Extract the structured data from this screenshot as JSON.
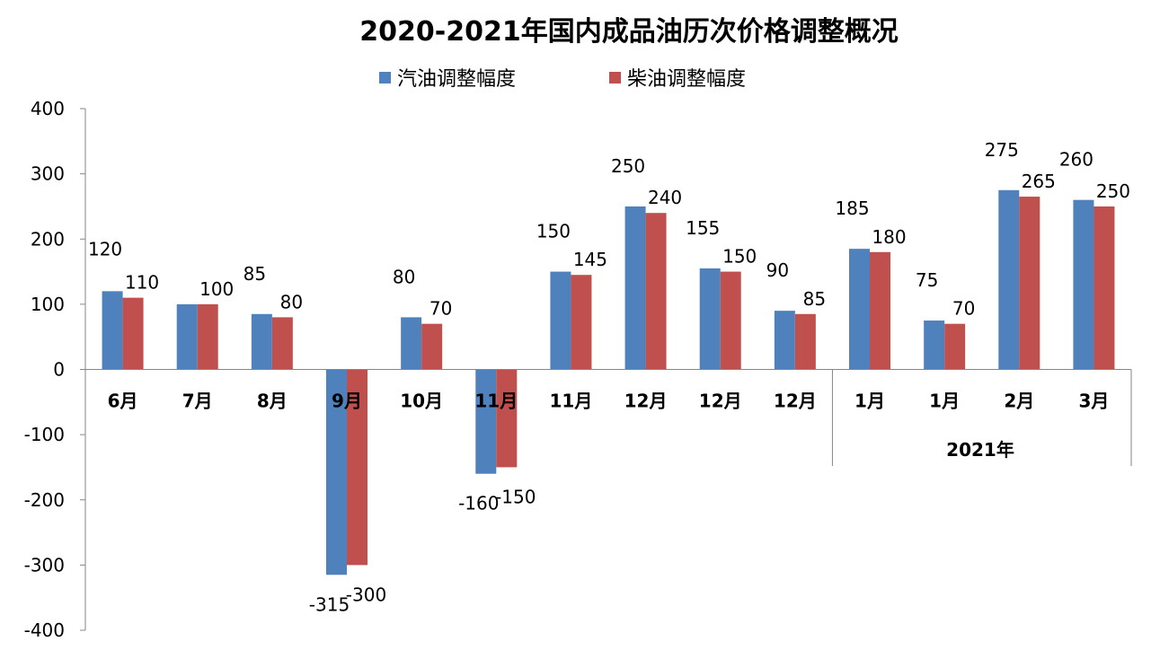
{
  "chart_data": {
    "type": "bar",
    "title": "2020-2021年国内成品油历次价格调整概况",
    "categories": [
      "6月",
      "7月",
      "8月",
      "9月",
      "10月",
      "11月",
      "11月",
      "12月",
      "12月",
      "12月",
      "1月",
      "1月",
      "2月",
      "3月"
    ],
    "category_group": {
      "label": "2021年",
      "from_index": 10,
      "to_index": 13
    },
    "series": [
      {
        "name": "汽油调整幅度",
        "color": "#4F81BD",
        "values": [
          120,
          100,
          85,
          -315,
          80,
          -160,
          150,
          250,
          155,
          90,
          185,
          75,
          275,
          260
        ],
        "labels": [
          "120",
          "",
          "85",
          "-315",
          "80",
          "-160",
          "150",
          "250",
          "155",
          "90",
          "185",
          "75",
          "275",
          "260"
        ]
      },
      {
        "name": "柴油调整幅度",
        "color": "#C0504D",
        "values": [
          110,
          100,
          80,
          -300,
          70,
          -150,
          145,
          240,
          150,
          85,
          180,
          70,
          265,
          250
        ],
        "labels": [
          "110",
          "100",
          "80",
          "-300",
          "70",
          "-150",
          "145",
          "240",
          "150",
          "85",
          "180",
          "70",
          "265",
          "250"
        ]
      }
    ],
    "ylim": [
      -400,
      400
    ],
    "yticks": [
      "400",
      "300",
      "200",
      "100",
      "0",
      "-100",
      "-200",
      "-300",
      "-400"
    ],
    "grid": false,
    "legend_position": "top"
  }
}
